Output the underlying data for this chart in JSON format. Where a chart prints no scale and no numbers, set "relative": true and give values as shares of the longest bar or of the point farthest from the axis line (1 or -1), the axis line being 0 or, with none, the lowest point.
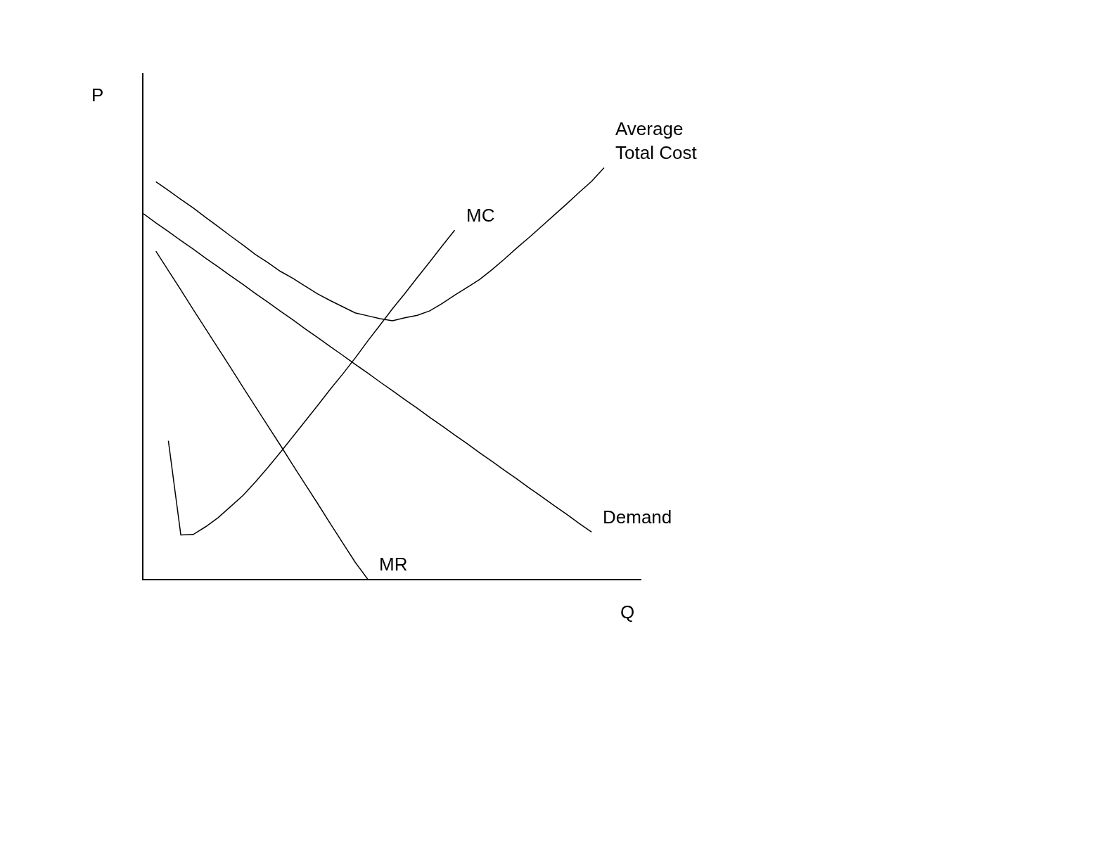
{
  "chart_data": {
    "type": "line",
    "relative": true,
    "xlabel": "Q",
    "ylabel": "P",
    "legend": false,
    "marker": "none",
    "line_style": "solid",
    "categories": [
      null,
      null,
      null,
      null,
      null,
      null,
      null,
      null,
      null,
      null,
      null,
      null,
      null,
      null,
      null,
      null,
      null,
      null,
      null,
      null,
      null,
      null,
      null,
      null,
      null,
      null,
      null,
      null,
      null,
      null,
      null,
      null,
      null,
      null,
      null,
      null,
      null,
      null,
      null,
      null,
      null
    ],
    "series": [
      {
        "name": "Average\nTotal Cost",
        "color": "#000000",
        "values": [
          null,
          0.966,
          0.945,
          0.923,
          0.902,
          0.879,
          0.857,
          0.834,
          0.812,
          0.789,
          0.769,
          0.748,
          0.731,
          0.712,
          0.693,
          0.677,
          0.662,
          0.647,
          0.64,
          0.633,
          0.628,
          0.635,
          0.641,
          0.652,
          0.67,
          0.69,
          0.709,
          0.728,
          0.752,
          0.778,
          0.805,
          0.831,
          0.858,
          0.885,
          0.912,
          0.94,
          0.967,
          1.0,
          null,
          null,
          null
        ]
      },
      {
        "name": "MC",
        "color": "#000000",
        "values": [
          null,
          null,
          0.336,
          0.107,
          0.108,
          0.127,
          0.149,
          0.176,
          0.203,
          0.236,
          0.271,
          0.308,
          0.346,
          0.384,
          0.422,
          0.461,
          0.498,
          0.537,
          0.578,
          0.617,
          0.657,
          0.694,
          0.733,
          0.771,
          0.81,
          0.848,
          null,
          null,
          null,
          null,
          null,
          null,
          null,
          null,
          null,
          null,
          null,
          null,
          null,
          null,
          null
        ]
      },
      {
        "name": "Demand",
        "color": "#000000",
        "values": [
          0.888,
          0.866,
          0.845,
          0.823,
          0.802,
          0.78,
          0.759,
          0.737,
          0.716,
          0.694,
          0.673,
          0.651,
          0.63,
          0.608,
          0.587,
          0.565,
          0.544,
          0.522,
          0.501,
          0.479,
          0.458,
          0.436,
          0.415,
          0.393,
          0.372,
          0.35,
          0.329,
          0.307,
          0.286,
          0.264,
          0.243,
          0.221,
          0.2,
          0.178,
          0.157,
          0.135,
          0.114,
          null,
          null,
          null,
          null
        ]
      },
      {
        "name": "MR",
        "color": "#000000",
        "values": [
          null,
          0.797,
          0.75,
          0.703,
          0.655,
          0.608,
          0.561,
          0.514,
          0.466,
          0.419,
          0.372,
          0.325,
          0.277,
          0.23,
          0.183,
          0.135,
          0.088,
          0.041,
          0.0,
          null,
          null,
          null,
          null,
          null,
          null,
          null,
          null,
          null,
          null,
          null,
          null,
          null,
          null,
          null,
          null,
          null,
          null,
          null,
          null,
          null,
          null
        ]
      }
    ]
  }
}
